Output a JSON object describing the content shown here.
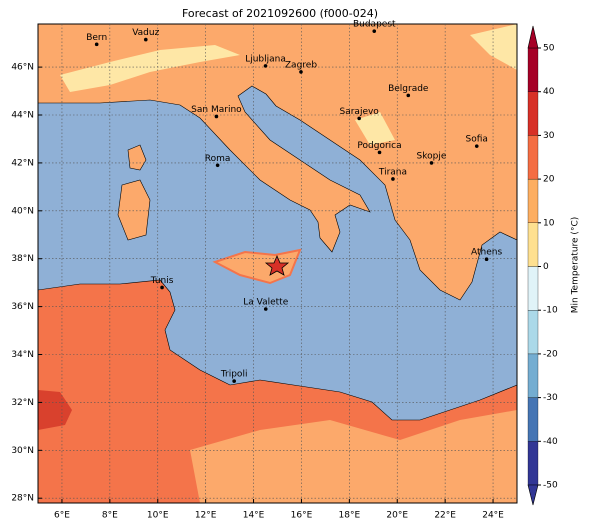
{
  "title": "Forecast of 2021092600 (f000-024)",
  "map": {
    "xlim": [
      5,
      25
    ],
    "ylim": [
      27.8,
      47.8
    ],
    "xticks": [
      {
        "value": 6,
        "label": "6°E"
      },
      {
        "value": 8,
        "label": "8°E"
      },
      {
        "value": 10,
        "label": "10°E"
      },
      {
        "value": 12,
        "label": "12°E"
      },
      {
        "value": 14,
        "label": "14°E"
      },
      {
        "value": 16,
        "label": "16°E"
      },
      {
        "value": 18,
        "label": "18°E"
      },
      {
        "value": 20,
        "label": "20°E"
      },
      {
        "value": 22,
        "label": "22°E"
      },
      {
        "value": 24,
        "label": "24°E"
      }
    ],
    "yticks": [
      {
        "value": 28,
        "label": "28°N"
      },
      {
        "value": 30,
        "label": "30°N"
      },
      {
        "value": 32,
        "label": "32°N"
      },
      {
        "value": 34,
        "label": "34°N"
      },
      {
        "value": 36,
        "label": "36°N"
      },
      {
        "value": 38,
        "label": "38°N"
      },
      {
        "value": 40,
        "label": "40°N"
      },
      {
        "value": 42,
        "label": "42°N"
      },
      {
        "value": 44,
        "label": "44°N"
      },
      {
        "value": 46,
        "label": "46°N"
      }
    ],
    "grid": true
  },
  "cities": [
    {
      "name": "Bern",
      "lon": 7.45,
      "lat": 46.95
    },
    {
      "name": "Vaduz",
      "lon": 9.5,
      "lat": 47.15
    },
    {
      "name": "Budapest",
      "lon": 19.04,
      "lat": 47.5
    },
    {
      "name": "Ljubljana",
      "lon": 14.5,
      "lat": 46.05
    },
    {
      "name": "Zagreb",
      "lon": 15.98,
      "lat": 45.8
    },
    {
      "name": "Belgrade",
      "lon": 20.46,
      "lat": 44.82
    },
    {
      "name": "Sarajevo",
      "lon": 18.41,
      "lat": 43.86
    },
    {
      "name": "San Marino",
      "lon": 12.45,
      "lat": 43.94
    },
    {
      "name": "Sofia",
      "lon": 23.32,
      "lat": 42.7
    },
    {
      "name": "Podgorica",
      "lon": 19.26,
      "lat": 42.44
    },
    {
      "name": "Skopje",
      "lon": 21.43,
      "lat": 42.0
    },
    {
      "name": "Roma",
      "lon": 12.5,
      "lat": 41.9
    },
    {
      "name": "Tirana",
      "lon": 19.82,
      "lat": 41.33
    },
    {
      "name": "Athens",
      "lon": 23.73,
      "lat": 37.98
    },
    {
      "name": "Tunis",
      "lon": 10.18,
      "lat": 36.8
    },
    {
      "name": "La Valette",
      "lon": 14.51,
      "lat": 35.9
    },
    {
      "name": "Tripoli",
      "lon": 13.19,
      "lat": 32.89
    }
  ],
  "colorbar": {
    "label": "Min Temperature (°C)",
    "ticks": [
      -50,
      -40,
      -30,
      -20,
      -10,
      0,
      10,
      20,
      30,
      40,
      50
    ],
    "colors": [
      "#313695",
      "#4575b4",
      "#74add1",
      "#abd9e9",
      "#e0f3f8",
      "#fee090",
      "#fdae61",
      "#f46d43",
      "#d73027",
      "#a50026"
    ]
  }
}
